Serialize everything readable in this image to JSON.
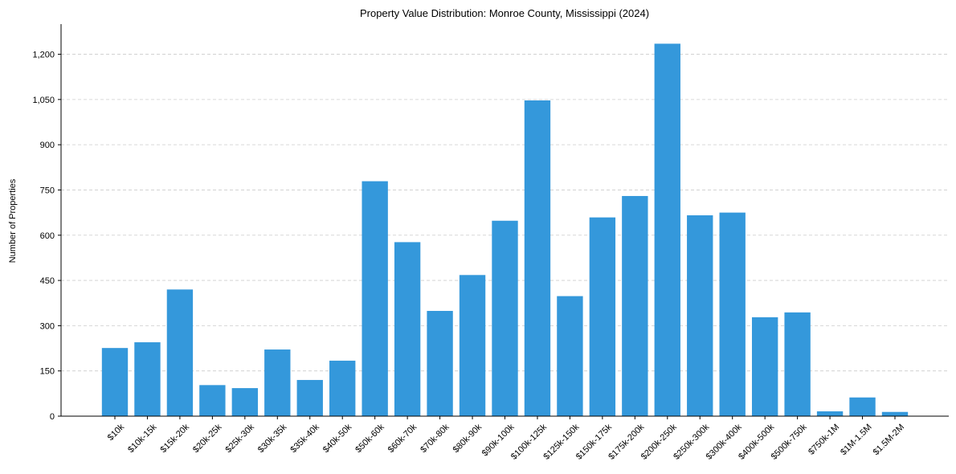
{
  "chart_data": {
    "type": "bar",
    "title": "Property Value Distribution: Monroe County, Mississippi (2024)",
    "xlabel": "",
    "ylabel": "Number of Properties",
    "ylim": [
      0,
      1300
    ],
    "yticks": [
      0,
      150,
      300,
      450,
      600,
      750,
      900,
      1050,
      1200
    ],
    "ytick_labels": [
      "0",
      "150",
      "300",
      "450",
      "600",
      "750",
      "900",
      "1,050",
      "1,200"
    ],
    "grid": "y-dashed",
    "bar_color": "#3498db",
    "categories": [
      "$10k",
      "$10k-15k",
      "$15k-20k",
      "$20k-25k",
      "$25k-30k",
      "$30k-35k",
      "$35k-40k",
      "$40k-50k",
      "$50k-60k",
      "$60k-70k",
      "$70k-80k",
      "$80k-90k",
      "$90k-100k",
      "$100k-125k",
      "$125k-150k",
      "$150k-175k",
      "$175k-200k",
      "$200k-250k",
      "$250k-300k",
      "$300k-400k",
      "$400k-500k",
      "$500k-750k",
      "$750k-1M",
      "$1M-1.5M",
      "$1.5M-2M"
    ],
    "values": [
      226,
      245,
      420,
      103,
      93,
      221,
      120,
      184,
      779,
      577,
      349,
      468,
      648,
      1047,
      398,
      659,
      730,
      1235,
      666,
      675,
      328,
      344,
      16,
      62,
      14
    ]
  }
}
